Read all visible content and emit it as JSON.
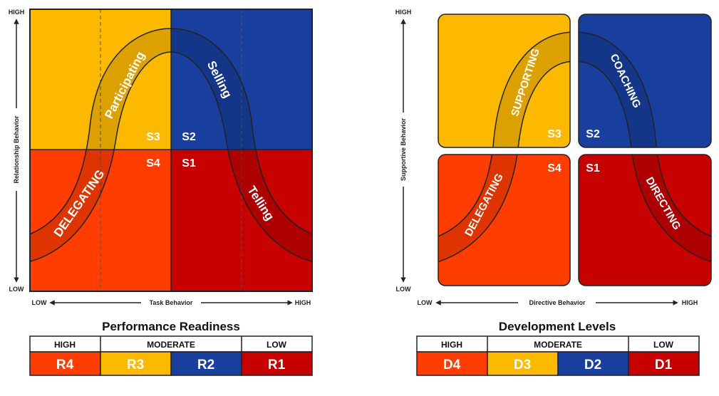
{
  "colors": {
    "yellow": "#fdb900",
    "blue": "#183f9e",
    "orange": "#ff3d00",
    "red": "#c70000",
    "outline": "#222222"
  },
  "left": {
    "y_high": "HIGH",
    "y_low": "LOW",
    "y_label": "Relationship Behavior",
    "x_low": "LOW",
    "x_high": "HIGH",
    "x_label": "Task Behavior",
    "curve_labels": {
      "participating": "Participating",
      "selling": "Selling",
      "delegating": "DELEGATING",
      "telling": "Telling"
    },
    "quadrants": {
      "s3": "S3",
      "s2": "S2",
      "s4": "S4",
      "s1": "S1"
    },
    "title": "Performance Readiness",
    "table": {
      "headers": [
        "HIGH",
        "MODERATE",
        "LOW"
      ],
      "values": [
        "R4",
        "R3",
        "R2",
        "R1"
      ]
    }
  },
  "right": {
    "y_high": "HIGH",
    "y_low": "LOW",
    "y_label": "Supportive Behavior",
    "x_low": "LOW",
    "x_high": "HIGH",
    "x_label": "Directive Behavior",
    "curve_labels": {
      "supporting": "SUPPORTING",
      "coaching": "COACHING",
      "delegating": "DELEGATING",
      "directing": "DIRECTING"
    },
    "quadrants": {
      "s3": "S3",
      "s2": "S2",
      "s4": "S4",
      "s1": "S1"
    },
    "title": "Development Levels",
    "table": {
      "headers": [
        "HIGH",
        "MODERATE",
        "LOW"
      ],
      "values": [
        "D4",
        "D3",
        "D2",
        "D1"
      ]
    }
  }
}
